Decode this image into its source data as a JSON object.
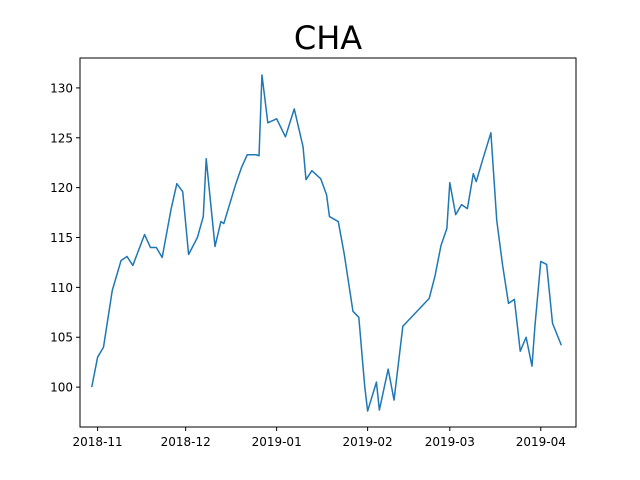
{
  "chart_data": {
    "type": "line",
    "title": "CHA",
    "xlabel": "",
    "ylabel": "",
    "grid": false,
    "line_color": "#1f77b4",
    "xlim": [
      "2018-10-26",
      "2019-04-13"
    ],
    "ylim": [
      96.0,
      133.0
    ],
    "x_tick_labels": [
      "2018-11",
      "2018-12",
      "2019-01",
      "2019-02",
      "2019-03",
      "2019-04"
    ],
    "x_tick_dates": [
      "2018-11-01",
      "2018-12-01",
      "2019-01-01",
      "2019-02-01",
      "2019-03-01",
      "2019-04-01"
    ],
    "y_ticks": [
      100,
      105,
      110,
      115,
      120,
      125,
      130
    ],
    "y_tick_labels": [
      "100",
      "105",
      "110",
      "115",
      "120",
      "125",
      "130"
    ],
    "series": [
      {
        "x": [
          "2018-10-30",
          "2018-11-01",
          "2018-11-03",
          "2018-11-06",
          "2018-11-09",
          "2018-11-11",
          "2018-11-13",
          "2018-11-17",
          "2018-11-19",
          "2018-11-21",
          "2018-11-23",
          "2018-11-26",
          "2018-11-28",
          "2018-11-30",
          "2018-12-02",
          "2018-12-05",
          "2018-12-07",
          "2018-12-08",
          "2018-12-11",
          "2018-12-13",
          "2018-12-14",
          "2018-12-18",
          "2018-12-20",
          "2018-12-22",
          "2018-12-25",
          "2018-12-26",
          "2018-12-27",
          "2018-12-29",
          "2019-01-01",
          "2019-01-04",
          "2019-01-07",
          "2019-01-10",
          "2019-01-11",
          "2019-01-13",
          "2019-01-16",
          "2019-01-18",
          "2019-01-19",
          "2019-01-22",
          "2019-01-24",
          "2019-01-27",
          "2019-01-29",
          "2019-01-31",
          "2019-02-01",
          "2019-02-04",
          "2019-02-05",
          "2019-02-08",
          "2019-02-10",
          "2019-02-13",
          "2019-02-22",
          "2019-02-24",
          "2019-02-26",
          "2019-02-28",
          "2019-03-01",
          "2019-03-03",
          "2019-03-05",
          "2019-03-07",
          "2019-03-09",
          "2019-03-10",
          "2019-03-12",
          "2019-03-15",
          "2019-03-17",
          "2019-03-19",
          "2019-03-21",
          "2019-03-23",
          "2019-03-25",
          "2019-03-27",
          "2019-03-29",
          "2019-03-30",
          "2019-04-01",
          "2019-04-03",
          "2019-04-05",
          "2019-04-08"
        ],
        "values": [
          100.0,
          103.0,
          104.0,
          109.7,
          112.7,
          113.1,
          112.2,
          115.3,
          114.0,
          114.0,
          113.0,
          117.8,
          120.4,
          119.6,
          113.3,
          115.0,
          117.1,
          122.9,
          114.1,
          116.6,
          116.4,
          120.3,
          122.0,
          123.3,
          123.3,
          123.2,
          131.3,
          126.5,
          126.9,
          125.1,
          127.9,
          124.1,
          120.8,
          121.7,
          120.9,
          119.3,
          117.1,
          116.6,
          113.4,
          107.6,
          107.0,
          100.1,
          97.6,
          100.5,
          97.7,
          101.8,
          98.7,
          106.1,
          108.9,
          111.2,
          114.2,
          115.9,
          120.5,
          117.3,
          118.3,
          117.9,
          121.4,
          120.6,
          122.6,
          125.5,
          116.7,
          112.2,
          108.4,
          108.8,
          103.6,
          105.0,
          102.1,
          106.1,
          112.6,
          112.3,
          106.4,
          104.2
        ]
      }
    ]
  }
}
